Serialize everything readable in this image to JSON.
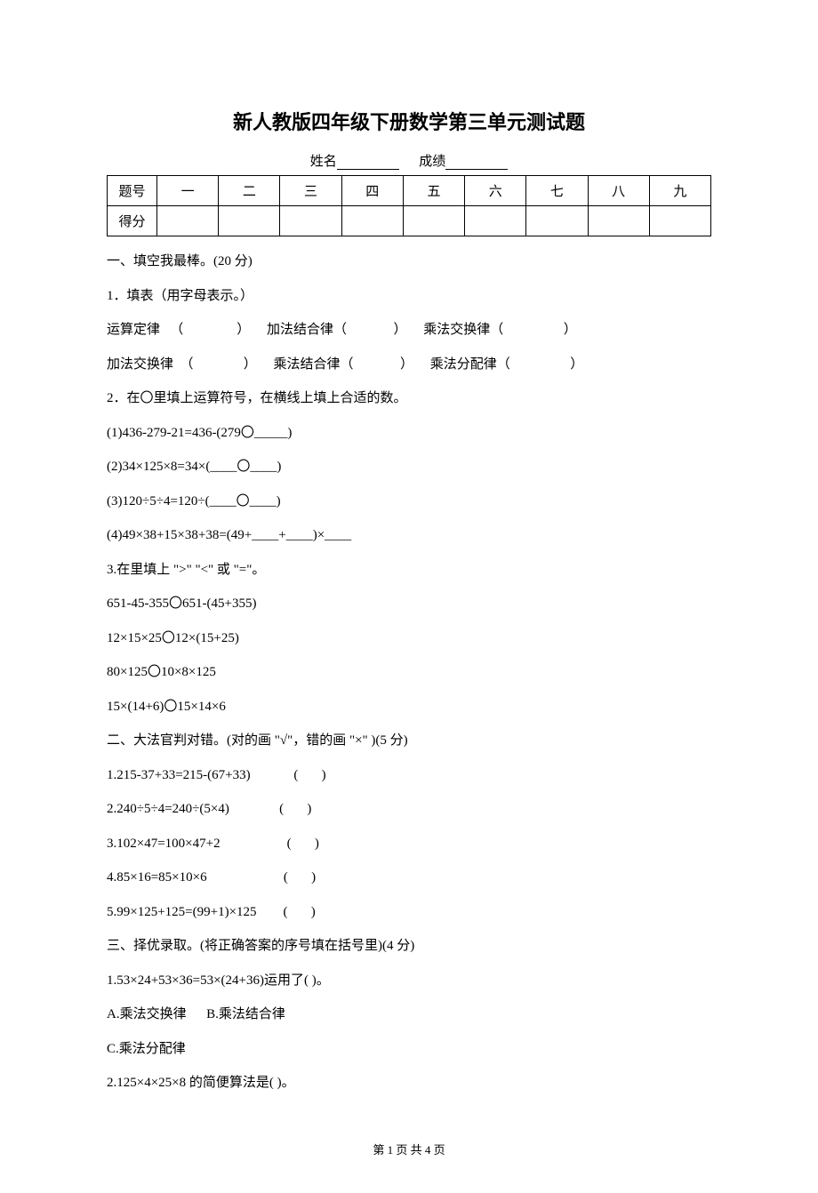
{
  "title": "新人教版四年级下册数学第三单元测试题",
  "nameLabel": "姓名",
  "scoreLabel": "成绩",
  "scoreTable": {
    "row1": [
      "题号",
      "一",
      "二",
      "三",
      "四",
      "五",
      "六",
      "七",
      "八",
      "九"
    ],
    "row2Label": "得分"
  },
  "section1": {
    "heading": "一、填空我最棒。(20 分)",
    "q1_intro": "1．填表（用字母表示。）",
    "q1_line1_a": "运算定律   （                ）     加法结合律（              ）     乘法交换律（                  ）",
    "q1_line2_a": "加法交换律  （               ）     乘法结合律（              ）     乘法分配律（                  ）",
    "q2_intro": "2．在〇里填上运算符号，在横线上填上合适的数。",
    "q2_1": "(1)436-279-21=436-(279〇_____)",
    "q2_2": "(2)34×125×8=34×(____〇____)",
    "q2_3": "(3)120÷5÷4=120÷(____〇____)",
    "q2_4": "(4)49×38+15×38+38=(49+____+____)×____",
    "q3_intro": "3.在里填上 \">\" \"<\" 或 \"=\"。",
    "q3_1": "651-45-355〇651-(45+355)",
    "q3_2": "12×15×25〇12×(15+25)",
    "q3_3": "80×125〇10×8×125",
    "q3_4": "15×(14+6)〇15×14×6"
  },
  "section2": {
    "heading": "二、大法官判对错。(对的画 \"√\"，错的画 \"×\" )(5 分)",
    "q1": "1.215-37+33=215-(67+33)             (       )",
    "q2": "2.240÷5÷4=240÷(5×4)               (       )",
    "q3": "3.102×47=100×47+2                    (       )",
    "q4": "4.85×16=85×10×6                       (       )",
    "q5": "5.99×125+125=(99+1)×125        (       )"
  },
  "section3": {
    "heading": "三、择优录取。(将正确答案的序号填在括号里)(4 分)",
    "q1": "1.53×24+53×36=53×(24+36)运用了(       )。",
    "q1_optA": "A.乘法交换律      B.乘法结合律",
    "q1_optC": "C.乘法分配律",
    "q2": "2.125×4×25×8 的简便算法是(      )。"
  },
  "footer": "第 1 页 共 4 页"
}
